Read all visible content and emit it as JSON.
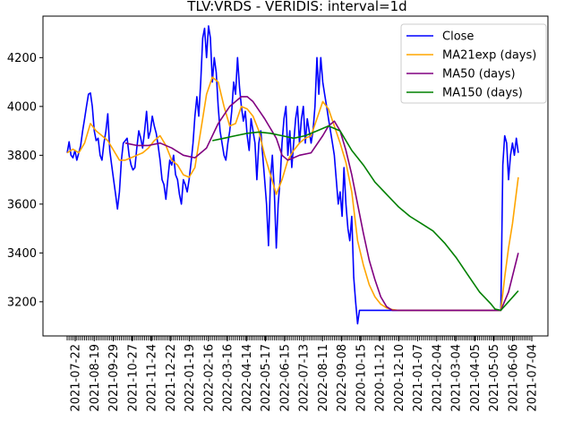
{
  "chart_data": {
    "type": "line",
    "title": "TLV:VRDS - VERIDIS: interval=1d",
    "xlabel": "",
    "ylabel": "",
    "ylim": [
      3060,
      4370
    ],
    "y_ticks": [
      3200,
      3400,
      3600,
      3800,
      4000,
      4200
    ],
    "x_tick_labels": [
      "2021-07-22",
      "2021-08-19",
      "2021-09-29",
      "2021-10-27",
      "2021-11-24",
      "2021-12-22",
      "2022-01-19",
      "2022-02-16",
      "2022-03-16",
      "2022-04-14",
      "2022-05-17",
      "2022-06-15",
      "2022-07-13",
      "2022-08-11",
      "2022-09-08",
      "2020-10-15",
      "2020-11-12",
      "2020-12-10",
      "2021-01-07",
      "2021-02-04",
      "2021-03-04",
      "2021-04-05",
      "2021-05-05",
      "2021-06-06",
      "2021-07-04"
    ],
    "grid": false,
    "legend_position": "upper-right",
    "x_index_range": [
      0,
      240
    ],
    "series": [
      {
        "name": "Close",
        "color": "#0000ff",
        "points": [
          [
            0,
            3810
          ],
          [
            1,
            3855
          ],
          [
            2,
            3800
          ],
          [
            3,
            3790
          ],
          [
            4,
            3820
          ],
          [
            5,
            3780
          ],
          [
            6,
            3810
          ],
          [
            7,
            3840
          ],
          [
            8,
            3900
          ],
          [
            9,
            3950
          ],
          [
            10,
            4000
          ],
          [
            11,
            4050
          ],
          [
            12,
            4055
          ],
          [
            13,
            4000
          ],
          [
            14,
            3900
          ],
          [
            15,
            3860
          ],
          [
            16,
            3870
          ],
          [
            17,
            3800
          ],
          [
            18,
            3780
          ],
          [
            19,
            3850
          ],
          [
            20,
            3900
          ],
          [
            21,
            3970
          ],
          [
            22,
            3820
          ],
          [
            23,
            3760
          ],
          [
            24,
            3700
          ],
          [
            25,
            3640
          ],
          [
            26,
            3580
          ],
          [
            27,
            3650
          ],
          [
            28,
            3780
          ],
          [
            29,
            3850
          ],
          [
            30,
            3860
          ],
          [
            31,
            3870
          ],
          [
            32,
            3800
          ],
          [
            33,
            3760
          ],
          [
            34,
            3740
          ],
          [
            35,
            3750
          ],
          [
            36,
            3830
          ],
          [
            37,
            3900
          ],
          [
            38,
            3870
          ],
          [
            39,
            3830
          ],
          [
            40,
            3900
          ],
          [
            41,
            3980
          ],
          [
            42,
            3870
          ],
          [
            43,
            3900
          ],
          [
            44,
            3960
          ],
          [
            45,
            3920
          ],
          [
            46,
            3890
          ],
          [
            47,
            3840
          ],
          [
            48,
            3780
          ],
          [
            49,
            3700
          ],
          [
            50,
            3680
          ],
          [
            51,
            3620
          ],
          [
            52,
            3700
          ],
          [
            53,
            3780
          ],
          [
            54,
            3760
          ],
          [
            55,
            3800
          ],
          [
            56,
            3720
          ],
          [
            57,
            3700
          ],
          [
            58,
            3640
          ],
          [
            59,
            3600
          ],
          [
            60,
            3700
          ],
          [
            61,
            3680
          ],
          [
            62,
            3650
          ],
          [
            63,
            3700
          ],
          [
            64,
            3770
          ],
          [
            65,
            3850
          ],
          [
            66,
            3960
          ],
          [
            67,
            4040
          ],
          [
            68,
            3960
          ],
          [
            69,
            4100
          ],
          [
            70,
            4280
          ],
          [
            71,
            4320
          ],
          [
            72,
            4200
          ],
          [
            73,
            4330
          ],
          [
            74,
            4280
          ],
          [
            75,
            4100
          ],
          [
            76,
            4200
          ],
          [
            77,
            4140
          ],
          [
            78,
            4000
          ],
          [
            79,
            3900
          ],
          [
            80,
            3850
          ],
          [
            81,
            3800
          ],
          [
            82,
            3780
          ],
          [
            83,
            3850
          ],
          [
            84,
            3900
          ],
          [
            85,
            3980
          ],
          [
            86,
            4100
          ],
          [
            87,
            4050
          ],
          [
            88,
            4200
          ],
          [
            89,
            4080
          ],
          [
            90,
            4000
          ],
          [
            91,
            3940
          ],
          [
            92,
            3980
          ],
          [
            93,
            3880
          ],
          [
            94,
            3820
          ],
          [
            95,
            3950
          ],
          [
            96,
            3900
          ],
          [
            97,
            3850
          ],
          [
            98,
            3700
          ],
          [
            99,
            3850
          ],
          [
            100,
            3900
          ],
          [
            101,
            3800
          ],
          [
            102,
            3700
          ],
          [
            103,
            3600
          ],
          [
            104,
            3430
          ],
          [
            105,
            3700
          ],
          [
            106,
            3800
          ],
          [
            107,
            3650
          ],
          [
            108,
            3420
          ],
          [
            109,
            3600
          ],
          [
            110,
            3700
          ],
          [
            111,
            3850
          ],
          [
            112,
            3950
          ],
          [
            113,
            4000
          ],
          [
            114,
            3800
          ],
          [
            115,
            3900
          ],
          [
            116,
            3750
          ],
          [
            117,
            3850
          ],
          [
            118,
            3950
          ],
          [
            119,
            4000
          ],
          [
            120,
            3850
          ],
          [
            121,
            3950
          ],
          [
            122,
            4000
          ],
          [
            123,
            3850
          ],
          [
            124,
            3950
          ],
          [
            125,
            3900
          ],
          [
            126,
            3850
          ],
          [
            127,
            3900
          ],
          [
            128,
            4000
          ],
          [
            129,
            4200
          ],
          [
            130,
            4050
          ],
          [
            131,
            4200
          ],
          [
            132,
            4100
          ],
          [
            133,
            4050
          ],
          [
            134,
            4000
          ],
          [
            135,
            3950
          ],
          [
            136,
            3900
          ],
          [
            137,
            3850
          ],
          [
            138,
            3800
          ],
          [
            139,
            3700
          ],
          [
            140,
            3600
          ],
          [
            141,
            3650
          ],
          [
            142,
            3550
          ],
          [
            143,
            3750
          ],
          [
            144,
            3600
          ],
          [
            145,
            3500
          ],
          [
            146,
            3450
          ],
          [
            147,
            3550
          ],
          [
            148,
            3300
          ],
          [
            149,
            3200
          ],
          [
            150,
            3110
          ],
          [
            151,
            3165
          ],
          [
            224,
            3165
          ],
          [
            225,
            3760
          ],
          [
            226,
            3880
          ],
          [
            227,
            3850
          ],
          [
            228,
            3700
          ],
          [
            229,
            3800
          ],
          [
            230,
            3850
          ],
          [
            231,
            3800
          ],
          [
            232,
            3870
          ],
          [
            233,
            3810
          ]
        ]
      },
      {
        "name": "MA21exp (days)",
        "color": "#ffa500",
        "points": [
          [
            0,
            3810
          ],
          [
            3,
            3825
          ],
          [
            6,
            3810
          ],
          [
            9,
            3850
          ],
          [
            12,
            3930
          ],
          [
            15,
            3900
          ],
          [
            18,
            3880
          ],
          [
            21,
            3860
          ],
          [
            24,
            3820
          ],
          [
            27,
            3780
          ],
          [
            30,
            3780
          ],
          [
            33,
            3790
          ],
          [
            36,
            3800
          ],
          [
            39,
            3810
          ],
          [
            42,
            3830
          ],
          [
            45,
            3860
          ],
          [
            48,
            3880
          ],
          [
            51,
            3840
          ],
          [
            54,
            3780
          ],
          [
            57,
            3760
          ],
          [
            60,
            3720
          ],
          [
            63,
            3710
          ],
          [
            66,
            3750
          ],
          [
            69,
            3900
          ],
          [
            72,
            4050
          ],
          [
            75,
            4120
          ],
          [
            78,
            4100
          ],
          [
            81,
            4000
          ],
          [
            84,
            3920
          ],
          [
            87,
            3930
          ],
          [
            90,
            4000
          ],
          [
            93,
            3990
          ],
          [
            96,
            3960
          ],
          [
            99,
            3900
          ],
          [
            102,
            3800
          ],
          [
            105,
            3720
          ],
          [
            108,
            3640
          ],
          [
            111,
            3700
          ],
          [
            114,
            3780
          ],
          [
            117,
            3820
          ],
          [
            120,
            3850
          ],
          [
            123,
            3870
          ],
          [
            126,
            3880
          ],
          [
            129,
            3950
          ],
          [
            132,
            4020
          ],
          [
            135,
            3990
          ],
          [
            138,
            3920
          ],
          [
            141,
            3850
          ],
          [
            144,
            3770
          ],
          [
            147,
            3650
          ],
          [
            150,
            3450
          ],
          [
            153,
            3350
          ],
          [
            156,
            3270
          ],
          [
            159,
            3220
          ],
          [
            162,
            3190
          ],
          [
            165,
            3175
          ],
          [
            168,
            3168
          ],
          [
            171,
            3165
          ],
          [
            224,
            3165
          ],
          [
            226,
            3300
          ],
          [
            228,
            3420
          ],
          [
            230,
            3520
          ],
          [
            233,
            3710
          ]
        ]
      },
      {
        "name": "MA50 (days)",
        "color": "#800080",
        "points": [
          [
            30,
            3850
          ],
          [
            36,
            3840
          ],
          [
            42,
            3840
          ],
          [
            48,
            3850
          ],
          [
            54,
            3830
          ],
          [
            60,
            3800
          ],
          [
            66,
            3790
          ],
          [
            72,
            3830
          ],
          [
            78,
            3930
          ],
          [
            84,
            4000
          ],
          [
            90,
            4040
          ],
          [
            93,
            4040
          ],
          [
            96,
            4020
          ],
          [
            102,
            3950
          ],
          [
            108,
            3870
          ],
          [
            111,
            3800
          ],
          [
            114,
            3780
          ],
          [
            117,
            3790
          ],
          [
            120,
            3800
          ],
          [
            126,
            3810
          ],
          [
            132,
            3880
          ],
          [
            135,
            3920
          ],
          [
            138,
            3940
          ],
          [
            141,
            3900
          ],
          [
            144,
            3820
          ],
          [
            147,
            3720
          ],
          [
            150,
            3600
          ],
          [
            153,
            3480
          ],
          [
            156,
            3370
          ],
          [
            159,
            3290
          ],
          [
            162,
            3220
          ],
          [
            165,
            3180
          ],
          [
            168,
            3165
          ],
          [
            224,
            3165
          ],
          [
            228,
            3240
          ],
          [
            233,
            3400
          ]
        ]
      },
      {
        "name": "MA150 (days)",
        "color": "#008000",
        "points": [
          [
            75,
            3860
          ],
          [
            81,
            3870
          ],
          [
            87,
            3880
          ],
          [
            93,
            3890
          ],
          [
            99,
            3895
          ],
          [
            105,
            3890
          ],
          [
            111,
            3880
          ],
          [
            117,
            3870
          ],
          [
            123,
            3880
          ],
          [
            129,
            3900
          ],
          [
            135,
            3920
          ],
          [
            141,
            3900
          ],
          [
            147,
            3820
          ],
          [
            153,
            3760
          ],
          [
            159,
            3690
          ],
          [
            165,
            3640
          ],
          [
            171,
            3590
          ],
          [
            177,
            3550
          ],
          [
            183,
            3520
          ],
          [
            189,
            3490
          ],
          [
            195,
            3440
          ],
          [
            201,
            3380
          ],
          [
            207,
            3310
          ],
          [
            213,
            3240
          ],
          [
            219,
            3190
          ],
          [
            221,
            3170
          ],
          [
            224,
            3165
          ],
          [
            228,
            3200
          ],
          [
            233,
            3245
          ]
        ]
      }
    ]
  }
}
